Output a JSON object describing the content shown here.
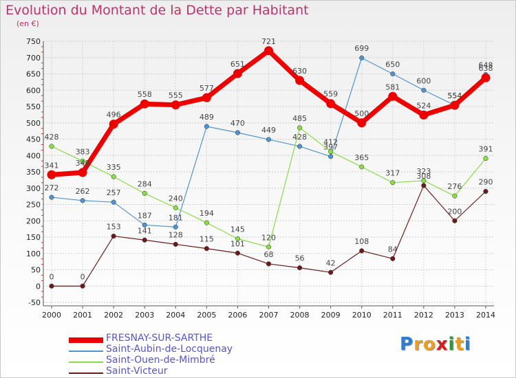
{
  "title": "Evolution du Montant de la Dette par Habitant",
  "subtitle": "(en €)",
  "logo": {
    "text": "Proxiti",
    "letters": [
      "P",
      "r",
      "o",
      "x",
      "i",
      "t",
      "i"
    ],
    "colors": [
      "#2a7fd4",
      "#e8a020",
      "#e8a020",
      "#d02020",
      "#2a9a3a",
      "#e8a020",
      "#2a7fd4"
    ]
  },
  "chart_data": {
    "type": "line",
    "title": "Evolution du Montant de la Dette par Habitant",
    "ylabel": "(en €)",
    "xlabel": "",
    "x": [
      "2000",
      "2001",
      "2002",
      "2003",
      "2004",
      "2005",
      "2006",
      "2007",
      "2008",
      "2009",
      "2010",
      "2011",
      "2012",
      "2013",
      "2014"
    ],
    "yticks": [
      -50,
      0,
      50,
      100,
      150,
      200,
      250,
      300,
      350,
      400,
      450,
      500,
      550,
      600,
      650,
      700,
      750
    ],
    "ylim": [
      -50,
      750
    ],
    "grid": true,
    "legend": "bottom-left",
    "series": [
      {
        "name": "FRESNAY-SUR-SARTHE",
        "color": "#ee0000",
        "width": 7,
        "values": [
          341,
          348,
          496,
          558,
          555,
          577,
          651,
          721,
          630,
          559,
          500,
          581,
          524,
          554,
          638
        ]
      },
      {
        "name": "Saint-Aubin-de-Locquenay",
        "color": "#4f94d0",
        "width": 1.2,
        "values": [
          272,
          262,
          257,
          187,
          181,
          489,
          470,
          449,
          428,
          397,
          699,
          650,
          600,
          554,
          648
        ]
      },
      {
        "name": "Saint-Ouen-de-Mimbré",
        "color": "#88dd44",
        "width": 1.2,
        "values": [
          428,
          383,
          335,
          284,
          240,
          194,
          145,
          120,
          485,
          412,
          365,
          317,
          323,
          276,
          391
        ]
      },
      {
        "name": "Saint-Victeur",
        "color": "#6b1a1a",
        "width": 1.2,
        "values": [
          0,
          0,
          153,
          141,
          128,
          115,
          101,
          68,
          56,
          42,
          108,
          84,
          308,
          200,
          290
        ]
      }
    ]
  }
}
